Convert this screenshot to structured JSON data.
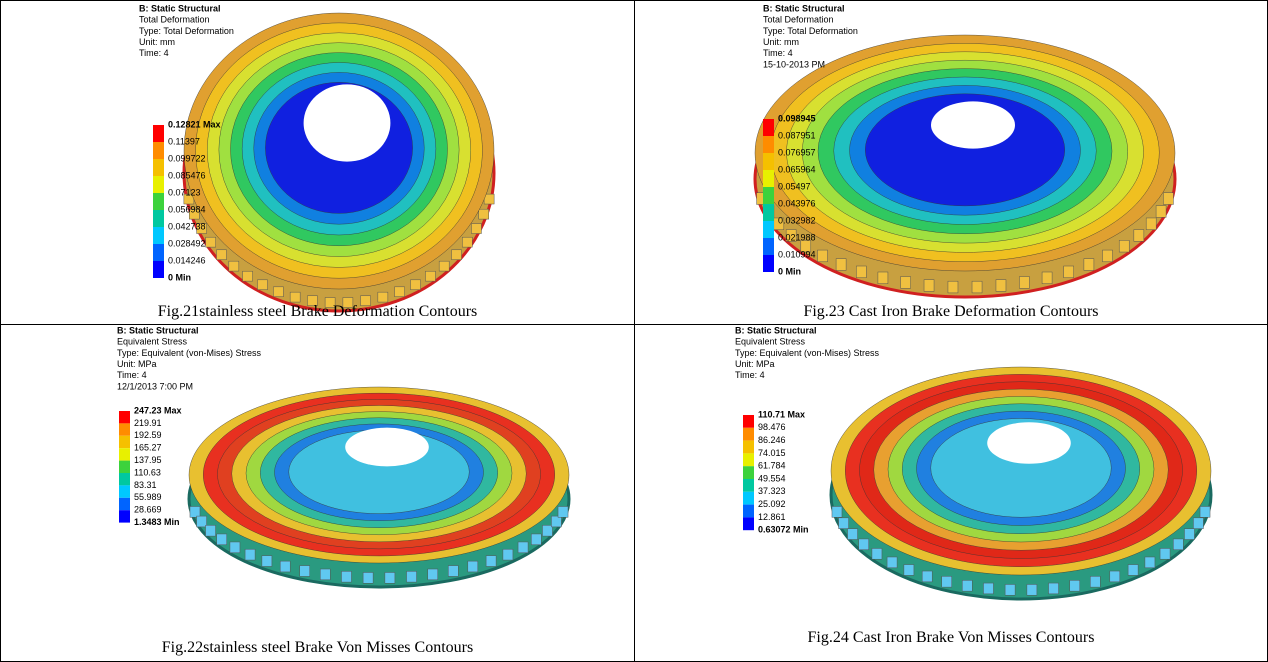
{
  "panels": [
    {
      "header": [
        "B: Static Structural",
        "Total Deformation",
        "Type: Total Deformation",
        "Unit: mm",
        "Time: 4"
      ],
      "legend": [
        "0.12821 Max",
        "0.11397",
        "0.099722",
        "0.085476",
        "0.07123",
        "0.056984",
        "0.042738",
        "0.028492",
        "0.014246",
        "0 Min"
      ],
      "caption": "Fig.21stainless steel Brake Deformation Contours"
    },
    {
      "header": [
        "B: Static Structural",
        "Total Deformation",
        "Type: Total Deformation",
        "Unit: mm",
        "Time: 4",
        "15-10-2013 PM"
      ],
      "legend": [
        "0.098945",
        "0.087951",
        "0.076957",
        "0.065964",
        "0.05497",
        "0.043976",
        "0.032982",
        "0.021988",
        "0.010994",
        "0 Min"
      ],
      "caption": "Fig.23 Cast Iron Brake Deformation Contours"
    },
    {
      "header": [
        "B: Static Structural",
        "Equivalent Stress",
        "Type: Equivalent (von-Mises) Stress",
        "Unit: MPa",
        "Time: 4",
        "12/1/2013 7:00 PM"
      ],
      "legend": [
        "247.23 Max",
        "219.91",
        "192.59",
        "165.27",
        "137.95",
        "110.63",
        "83.31",
        "55.989",
        "28.669",
        "1.3483 Min"
      ],
      "caption": "Fig.22stainless steel Brake Von Misses Contours"
    },
    {
      "header": [
        "B: Static Structural",
        "Equivalent Stress",
        "Type: Equivalent (von-Mises) Stress",
        "Unit: MPa",
        "Time: 4"
      ],
      "legend": [
        "110.71 Max",
        "98.476",
        "86.246",
        "74.015",
        "61.784",
        "49.554",
        "37.323",
        "25.092",
        "12.861",
        "0.63072 Min"
      ],
      "caption": "Fig.24 Cast Iron Brake Von Misses Contours"
    }
  ]
}
